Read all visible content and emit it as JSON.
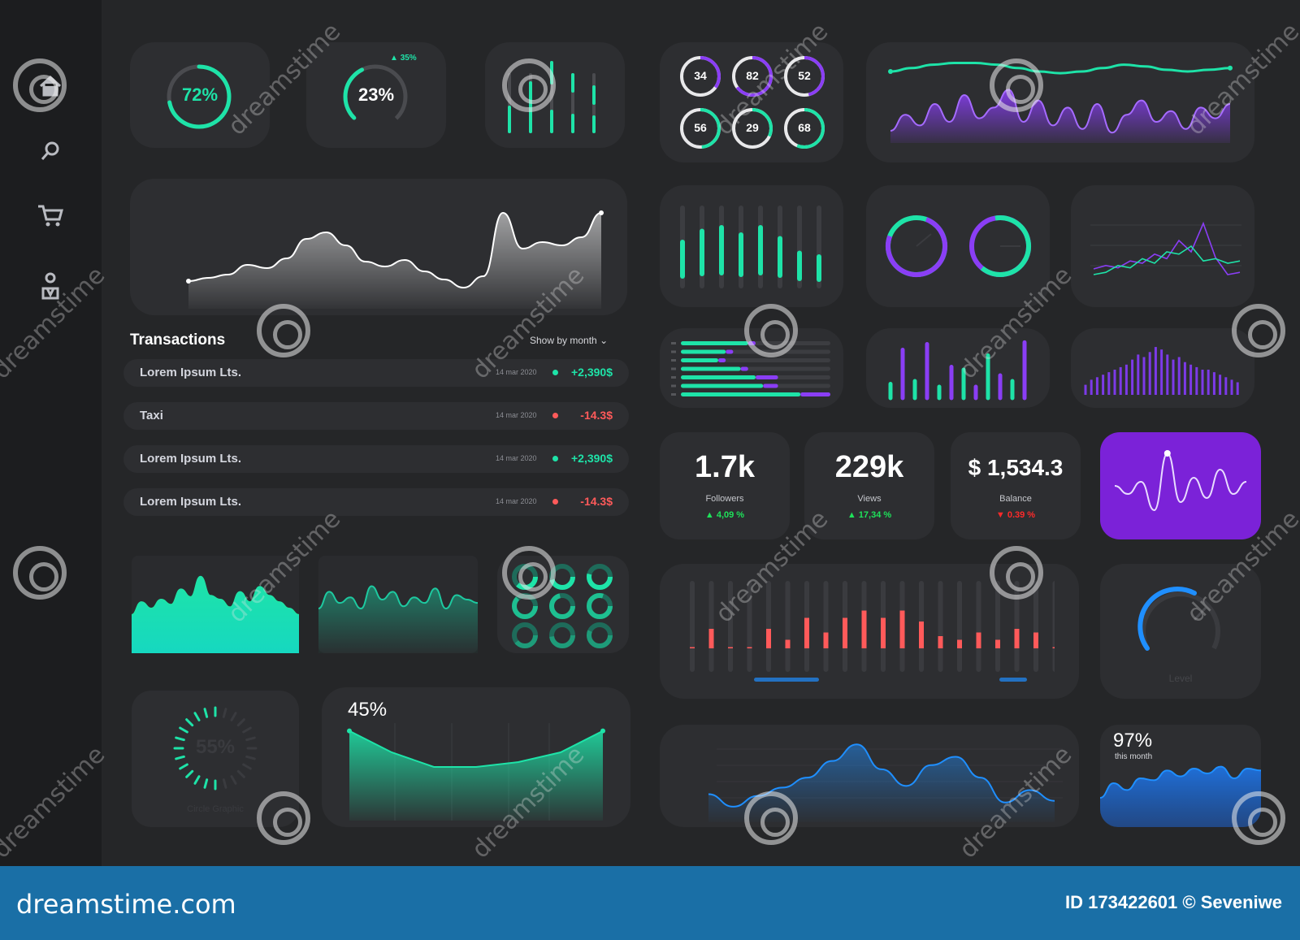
{
  "colors": {
    "background": "#252628",
    "card": "#2d2e31",
    "teal": "#1ee3a8",
    "purple": "#8a3ef5",
    "red": "#ff5a5a",
    "blue": "#1f8fff",
    "footer": "#1a6fa6"
  },
  "sidebar": {
    "icons": [
      "home-icon",
      "search-icon",
      "cart-icon",
      "user-icon"
    ]
  },
  "gauges": {
    "g1": "72%",
    "g2": "23%",
    "g2_delta": "35%"
  },
  "small_circles": [
    "34",
    "82",
    "52",
    "56",
    "29",
    "68"
  ],
  "transactions": {
    "title": "Transactions",
    "filter": "Show by month",
    "rows": [
      {
        "name": "Lorem Ipsum Lts.",
        "date": "14 mar 2020",
        "amount": "+2,390$",
        "status": "positive"
      },
      {
        "name": "Taxi",
        "date": "14 mar 2020",
        "amount": "-14.3$",
        "status": "negative"
      },
      {
        "name": "Lorem Ipsum Lts.",
        "date": "14 mar 2020",
        "amount": "+2,390$",
        "status": "positive"
      },
      {
        "name": "Lorem Ipsum Lts.",
        "date": "14 mar 2020",
        "amount": "-14.3$",
        "status": "negative"
      }
    ]
  },
  "kpis": [
    {
      "value": "1.7k",
      "label": "Followers",
      "change": "4,09 %",
      "direction": "up"
    },
    {
      "value": "229k",
      "label": "Views",
      "change": "17,34 %",
      "direction": "up"
    },
    {
      "value": "$ 1,534.3",
      "label": "Balance",
      "change": "0.39 %",
      "direction": "down"
    }
  ],
  "circle_graphic": {
    "value": "55%",
    "label": "Circle Graphic"
  },
  "area_45": {
    "value": "45%"
  },
  "level": {
    "label": "Level"
  },
  "month_card": {
    "value": "97%",
    "label": "this month"
  },
  "footer": {
    "site": "dreamstime.com",
    "id": "ID 173422601 © Seveniwe"
  },
  "watermark": {
    "text": "dreamstime"
  },
  "chart_data": [
    {
      "type": "area",
      "name": "main-white-wave",
      "values": [
        0,
        2,
        4,
        10,
        8,
        14,
        26,
        30,
        22,
        12,
        9,
        13,
        6,
        1,
        -4,
        3,
        42,
        20,
        24,
        22,
        27,
        42
      ]
    },
    {
      "type": "area",
      "name": "top-right-wave",
      "series": [
        {
          "name": "teal",
          "values": [
            40,
            42,
            44,
            45,
            45,
            44,
            42,
            40,
            39,
            40,
            42,
            44,
            43,
            41,
            40,
            41,
            42
          ]
        },
        {
          "name": "purple",
          "values": [
            5,
            14,
            8,
            20,
            10,
            25,
            12,
            18,
            28,
            10,
            22,
            8,
            18,
            6,
            20,
            4,
            14,
            22,
            10,
            16,
            6,
            18,
            12,
            20
          ]
        }
      ]
    },
    {
      "type": "bar",
      "name": "teal-vertical-bars",
      "values": [
        0.6,
        0.75,
        0.8,
        0.7,
        0.8,
        0.65,
        0.45,
        0.4
      ]
    },
    {
      "type": "bar",
      "name": "horizontal-bars",
      "series": [
        {
          "name": "teal",
          "values": [
            0.45,
            0.3,
            0.25,
            0.4,
            0.5,
            0.55,
            0.8
          ]
        },
        {
          "name": "purple",
          "values": [
            0.05,
            0.05,
            0.05,
            0.05,
            0.15,
            0.1,
            0.2
          ]
        }
      ]
    },
    {
      "type": "bar",
      "name": "teal-purple-bars",
      "values": [
        0.25,
        0.85,
        0.3,
        0.95,
        0.2,
        0.55,
        0.5,
        0.2,
        0.75,
        0.4,
        0.3,
        0.98
      ]
    },
    {
      "type": "bar",
      "name": "purple-dense-bars",
      "values": [
        0.2,
        0.3,
        0.35,
        0.4,
        0.45,
        0.5,
        0.55,
        0.6,
        0.7,
        0.8,
        0.75,
        0.85,
        0.95,
        0.9,
        0.8,
        0.7,
        0.75,
        0.65,
        0.6,
        0.55,
        0.5,
        0.5,
        0.45,
        0.4,
        0.35,
        0.3,
        0.25
      ]
    },
    {
      "type": "line",
      "name": "multi-line",
      "series": [
        {
          "name": "purple",
          "values": [
            15,
            18,
            16,
            22,
            20,
            28,
            24,
            40,
            30,
            55,
            25,
            10,
            12
          ]
        },
        {
          "name": "teal",
          "values": [
            10,
            12,
            18,
            16,
            24,
            20,
            30,
            28,
            35,
            22,
            24,
            20,
            22
          ]
        }
      ]
    },
    {
      "type": "bar",
      "name": "red-bars",
      "values": [
        0.35,
        0.6,
        0.35,
        0.35,
        0.6,
        0.45,
        0.75,
        0.55,
        0.75,
        0.85,
        0.75,
        0.85,
        0.7,
        0.5,
        0.45,
        0.55,
        0.45,
        0.6,
        0.55,
        0.35
      ]
    },
    {
      "type": "area",
      "name": "teal-filled",
      "values": [
        30,
        40,
        35,
        42,
        38,
        50,
        44,
        60,
        45,
        42,
        36,
        48,
        40,
        52,
        45,
        40,
        35,
        30
      ]
    },
    {
      "type": "area",
      "name": "dark-teal-wave",
      "values": [
        40,
        55,
        45,
        50,
        40,
        60,
        48,
        55,
        42,
        50,
        45,
        58,
        40,
        52,
        48,
        45
      ]
    },
    {
      "type": "area",
      "name": "percent-area",
      "values": [
        0.92,
        0.7,
        0.55,
        0.55,
        0.6,
        0.7,
        0.92
      ]
    },
    {
      "type": "line",
      "name": "blue-wave",
      "values": [
        20,
        5,
        18,
        28,
        40,
        60,
        80,
        50,
        30,
        55,
        65,
        40,
        10,
        25,
        12
      ]
    },
    {
      "type": "area",
      "name": "blue-month",
      "values": [
        30,
        45,
        38,
        50,
        48,
        58,
        52,
        60,
        55,
        62,
        50,
        60,
        58
      ]
    },
    {
      "type": "line",
      "name": "purple-card-wave",
      "values": [
        0,
        -10,
        5,
        -30,
        40,
        -20,
        10,
        -15,
        20,
        -10,
        5
      ]
    }
  ]
}
